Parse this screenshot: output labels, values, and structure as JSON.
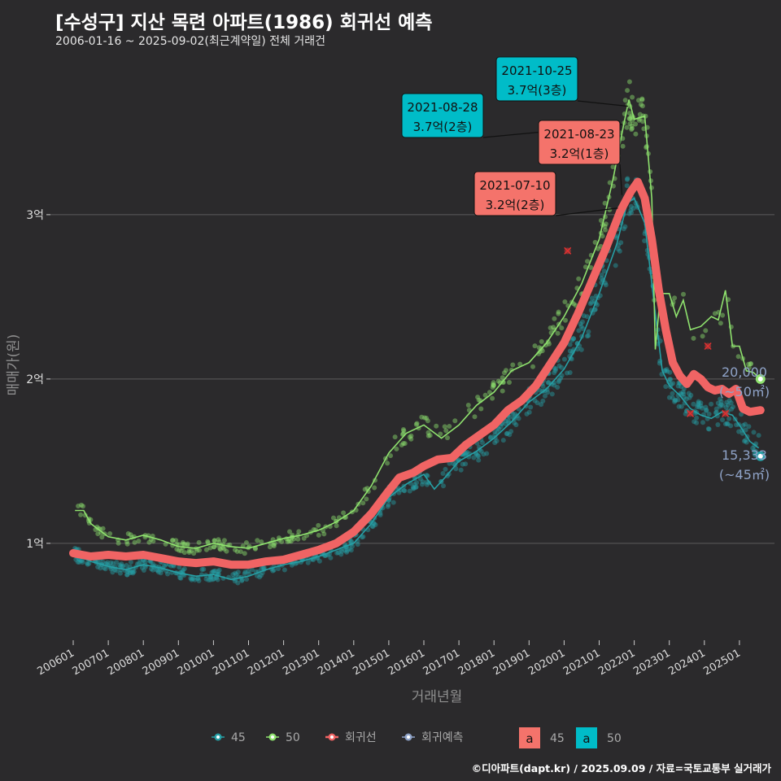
{
  "title": "[수성구] 지산 목련 아파트(1986) 회귀선 예측",
  "subtitle": "2006-01-16 ~ 2025-09-02(최근계약일) 전체 거래건",
  "caption": "©디아파트(dapt.kr) / 2025.09.09 / 자료=국토교통부 실거래가",
  "colors": {
    "background": "#2b2a2c",
    "grid": "#5c5c5c",
    "area45": "#26a0a6",
    "area50": "#8fe26e",
    "regression": "#f06464",
    "forecast": "#8fa3c8",
    "label45_fill": "#f4736b",
    "label50_fill": "#00bcc8"
  },
  "chart_data": {
    "type": "scatter",
    "xlabel": "거래년월",
    "ylabel": "매매가(원)",
    "ylim": [
      0.42,
      3.95
    ],
    "yticks": [
      {
        "value": 1,
        "label": "1억"
      },
      {
        "value": 2,
        "label": "2억"
      },
      {
        "value": 3,
        "label": "3억"
      }
    ],
    "xticks": [
      "200601",
      "200701",
      "200801",
      "200901",
      "201001",
      "201101",
      "201201",
      "201301",
      "201401",
      "201501",
      "201601",
      "201701",
      "201801",
      "201901",
      "202001",
      "202101",
      "202201",
      "202301",
      "202401",
      "202501"
    ],
    "grid": true,
    "legend": {
      "position": "bottom",
      "line_items": [
        {
          "key": "45",
          "label": "45",
          "color": "#26a0a6"
        },
        {
          "key": "50",
          "label": "50",
          "color": "#8fe26e"
        },
        {
          "key": "reg",
          "label": "회귀선",
          "color": "#f06464"
        },
        {
          "key": "fc",
          "label": "회귀예측",
          "color": "#8fa3c8"
        }
      ],
      "label_items": [
        {
          "glyph": "a",
          "label": "45",
          "fill": "#f4736b"
        },
        {
          "glyph": "a",
          "label": "50",
          "fill": "#00bcc8"
        }
      ]
    },
    "series": [
      {
        "name": "45",
        "line": [
          [
            2006.05,
            0.93
          ],
          [
            2006.5,
            0.89
          ],
          [
            2007.0,
            0.86
          ],
          [
            2007.5,
            0.84
          ],
          [
            2008.0,
            0.87
          ],
          [
            2008.5,
            0.85
          ],
          [
            2009.0,
            0.82
          ],
          [
            2009.5,
            0.8
          ],
          [
            2010.0,
            0.81
          ],
          [
            2010.5,
            0.78
          ],
          [
            2011.0,
            0.8
          ],
          [
            2011.5,
            0.84
          ],
          [
            2012.0,
            0.87
          ],
          [
            2012.5,
            0.89
          ],
          [
            2013.0,
            0.92
          ],
          [
            2013.5,
            0.96
          ],
          [
            2014.0,
            1.0
          ],
          [
            2014.5,
            1.12
          ],
          [
            2015.0,
            1.28
          ],
          [
            2015.5,
            1.36
          ],
          [
            2016.0,
            1.42
          ],
          [
            2016.3,
            1.33
          ],
          [
            2016.6,
            1.4
          ],
          [
            2017.0,
            1.5
          ],
          [
            2017.5,
            1.56
          ],
          [
            2018.0,
            1.64
          ],
          [
            2018.5,
            1.74
          ],
          [
            2019.0,
            1.86
          ],
          [
            2019.5,
            1.94
          ],
          [
            2020.0,
            2.06
          ],
          [
            2020.5,
            2.25
          ],
          [
            2021.0,
            2.52
          ],
          [
            2021.5,
            2.82
          ],
          [
            2021.8,
            3.07
          ],
          [
            2022.0,
            3.1
          ],
          [
            2022.3,
            2.95
          ],
          [
            2022.6,
            2.4
          ],
          [
            2022.8,
            2.05
          ],
          [
            2023.0,
            1.96
          ],
          [
            2023.3,
            1.9
          ],
          [
            2023.6,
            1.82
          ],
          [
            2023.9,
            1.78
          ],
          [
            2024.2,
            1.76
          ],
          [
            2024.5,
            1.8
          ],
          [
            2024.8,
            1.78
          ],
          [
            2025.0,
            1.72
          ],
          [
            2025.3,
            1.62
          ],
          [
            2025.55,
            1.58
          ]
        ]
      },
      {
        "name": "50",
        "line": [
          [
            2006.05,
            1.2
          ],
          [
            2006.3,
            1.2
          ],
          [
            2006.5,
            1.12
          ],
          [
            2007.0,
            1.04
          ],
          [
            2007.5,
            1.02
          ],
          [
            2008.0,
            1.05
          ],
          [
            2008.5,
            1.02
          ],
          [
            2009.0,
            0.98
          ],
          [
            2009.5,
            0.97
          ],
          [
            2010.0,
            1.0
          ],
          [
            2010.5,
            0.98
          ],
          [
            2011.0,
            0.97
          ],
          [
            2011.5,
            1.0
          ],
          [
            2012.0,
            1.03
          ],
          [
            2012.5,
            1.05
          ],
          [
            2013.0,
            1.08
          ],
          [
            2013.5,
            1.13
          ],
          [
            2014.0,
            1.2
          ],
          [
            2014.5,
            1.35
          ],
          [
            2015.0,
            1.55
          ],
          [
            2015.5,
            1.67
          ],
          [
            2016.0,
            1.72
          ],
          [
            2016.5,
            1.64
          ],
          [
            2017.0,
            1.72
          ],
          [
            2017.5,
            1.84
          ],
          [
            2018.0,
            1.92
          ],
          [
            2018.5,
            2.05
          ],
          [
            2019.0,
            2.1
          ],
          [
            2019.5,
            2.22
          ],
          [
            2020.0,
            2.38
          ],
          [
            2020.5,
            2.58
          ],
          [
            2021.0,
            2.85
          ],
          [
            2021.4,
            3.22
          ],
          [
            2021.7,
            3.55
          ],
          [
            2021.85,
            3.7
          ],
          [
            2022.0,
            3.58
          ],
          [
            2022.3,
            3.6
          ],
          [
            2022.5,
            3.1
          ],
          [
            2022.6,
            2.18
          ],
          [
            2022.75,
            2.52
          ],
          [
            2023.0,
            2.52
          ],
          [
            2023.2,
            2.38
          ],
          [
            2023.4,
            2.48
          ],
          [
            2023.6,
            2.3
          ],
          [
            2023.9,
            2.32
          ],
          [
            2024.2,
            2.38
          ],
          [
            2024.4,
            2.36
          ],
          [
            2024.6,
            2.54
          ],
          [
            2024.8,
            2.2
          ],
          [
            2025.0,
            2.2
          ],
          [
            2025.2,
            2.05
          ],
          [
            2025.4,
            2.04
          ],
          [
            2025.6,
            2.0
          ]
        ]
      },
      {
        "name": "회귀선",
        "line": [
          [
            2006.0,
            0.94
          ],
          [
            2006.5,
            0.92
          ],
          [
            2007.0,
            0.93
          ],
          [
            2007.5,
            0.92
          ],
          [
            2008.0,
            0.93
          ],
          [
            2008.5,
            0.91
          ],
          [
            2009.0,
            0.89
          ],
          [
            2009.5,
            0.88
          ],
          [
            2010.0,
            0.89
          ],
          [
            2010.5,
            0.87
          ],
          [
            2011.0,
            0.87
          ],
          [
            2011.5,
            0.89
          ],
          [
            2012.0,
            0.9
          ],
          [
            2012.5,
            0.93
          ],
          [
            2013.0,
            0.96
          ],
          [
            2013.5,
            1.0
          ],
          [
            2014.0,
            1.07
          ],
          [
            2014.5,
            1.18
          ],
          [
            2015.0,
            1.32
          ],
          [
            2015.3,
            1.4
          ],
          [
            2015.7,
            1.43
          ],
          [
            2016.0,
            1.47
          ],
          [
            2016.4,
            1.51
          ],
          [
            2016.8,
            1.52
          ],
          [
            2017.2,
            1.6
          ],
          [
            2017.6,
            1.66
          ],
          [
            2018.0,
            1.72
          ],
          [
            2018.4,
            1.81
          ],
          [
            2018.8,
            1.87
          ],
          [
            2019.2,
            1.96
          ],
          [
            2019.6,
            2.09
          ],
          [
            2020.0,
            2.22
          ],
          [
            2020.4,
            2.4
          ],
          [
            2020.8,
            2.6
          ],
          [
            2021.2,
            2.8
          ],
          [
            2021.6,
            3.02
          ],
          [
            2021.9,
            3.14
          ],
          [
            2022.1,
            3.2
          ],
          [
            2022.3,
            3.1
          ],
          [
            2022.5,
            2.85
          ],
          [
            2022.7,
            2.54
          ],
          [
            2022.9,
            2.3
          ],
          [
            2023.1,
            2.1
          ],
          [
            2023.3,
            2.02
          ],
          [
            2023.5,
            1.97
          ],
          [
            2023.7,
            2.03
          ],
          [
            2023.9,
            2.0
          ],
          [
            2024.1,
            1.95
          ],
          [
            2024.3,
            1.93
          ],
          [
            2024.5,
            1.94
          ],
          [
            2024.7,
            1.91
          ],
          [
            2024.9,
            1.94
          ],
          [
            2025.1,
            1.82
          ],
          [
            2025.3,
            1.8
          ],
          [
            2025.6,
            1.81
          ]
        ]
      }
    ],
    "scatter_points": {
      "n": 1030
    },
    "marked_points_x": [
      [
        2020.1,
        2.78
      ],
      [
        2023.6,
        1.79
      ],
      [
        2024.1,
        2.2
      ],
      [
        2024.6,
        1.79
      ]
    ],
    "endpoints": [
      {
        "series": "50",
        "x": 2025.6,
        "y": 2.0,
        "value_label": "20,000",
        "area_label": "(~50㎡)"
      },
      {
        "series": "45",
        "x": 2025.6,
        "y": 1.53,
        "value_label": "15,333",
        "area_label": "(~45㎡)"
      }
    ],
    "annotations": [
      {
        "date": "2021-10-25",
        "price": "3.7억(3층)",
        "series": "50",
        "x": 2021.82,
        "y": 3.66
      },
      {
        "date": "2021-08-28",
        "price": "3.7억(2층)",
        "series": "50",
        "x": 2021.66,
        "y": 3.55
      },
      {
        "date": "2021-08-23",
        "price": "3.2억(1층)",
        "series": "45",
        "x": 2021.65,
        "y": 3.12
      },
      {
        "date": "2021-07-10",
        "price": "3.2억(2층)",
        "series": "45",
        "x": 2021.53,
        "y": 3.04
      }
    ]
  }
}
